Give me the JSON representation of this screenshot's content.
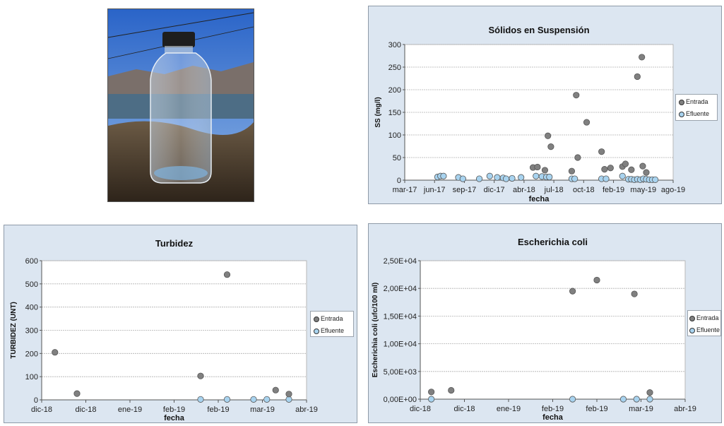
{
  "colors": {
    "entrada": "#808080",
    "efluente": "#a8d3ef",
    "plot_bg": "#ffffff",
    "panel_bg": "#dce6f1"
  },
  "photo": {
    "icon": "water-sample-bottle-photo"
  },
  "chart_data": [
    {
      "id": "ss",
      "type": "scatter",
      "title": "Sólidos en Suspensión",
      "xlabel": "fecha",
      "ylabel": "SS (mg/l)",
      "ylim": [
        0,
        300
      ],
      "yticks": [
        "0",
        "50",
        "100",
        "150",
        "200",
        "250",
        "300"
      ],
      "yticks_values": [
        0,
        50,
        100,
        150,
        200,
        250,
        300
      ],
      "xticks": [
        "mar-17",
        "jun-17",
        "sep-17",
        "dic-17",
        "abr-18",
        "jul-18",
        "oct-18",
        "feb-19",
        "may-19",
        "ago-19"
      ],
      "grid": true,
      "legend_position": "right",
      "series": [
        {
          "name": "Entrada",
          "points": [
            [
              4.3,
              28
            ],
            [
              4.45,
              29
            ],
            [
              4.7,
              22
            ],
            [
              4.8,
              98
            ],
            [
              4.9,
              74
            ],
            [
              5.6,
              20
            ],
            [
              5.75,
              188
            ],
            [
              5.8,
              50
            ],
            [
              6.1,
              128
            ],
            [
              6.6,
              63
            ],
            [
              6.7,
              24
            ],
            [
              6.9,
              27
            ],
            [
              7.3,
              30
            ],
            [
              7.4,
              36
            ],
            [
              7.6,
              23
            ],
            [
              7.8,
              229
            ],
            [
              7.95,
              272
            ],
            [
              7.98,
              31
            ],
            [
              8.1,
              17
            ]
          ]
        },
        {
          "name": "Efluente",
          "points": [
            [
              1.1,
              7
            ],
            [
              1.2,
              9
            ],
            [
              1.3,
              9
            ],
            [
              1.8,
              6
            ],
            [
              1.95,
              3
            ],
            [
              2.5,
              3
            ],
            [
              2.85,
              9
            ],
            [
              3.1,
              6
            ],
            [
              3.3,
              5
            ],
            [
              3.4,
              3
            ],
            [
              3.6,
              4
            ],
            [
              3.9,
              6
            ],
            [
              4.4,
              9
            ],
            [
              4.6,
              8
            ],
            [
              4.75,
              7
            ],
            [
              4.85,
              7
            ],
            [
              5.6,
              3
            ],
            [
              5.7,
              3
            ],
            [
              6.6,
              3
            ],
            [
              6.75,
              3
            ],
            [
              7.3,
              9
            ],
            [
              7.5,
              2
            ],
            [
              7.6,
              2
            ],
            [
              7.7,
              1
            ],
            [
              7.8,
              2
            ],
            [
              7.9,
              1
            ],
            [
              8.0,
              3
            ],
            [
              8.1,
              2
            ],
            [
              8.2,
              1
            ],
            [
              8.3,
              1
            ],
            [
              8.4,
              1
            ]
          ]
        }
      ]
    },
    {
      "id": "turb",
      "type": "scatter",
      "title": "Turbidez",
      "xlabel": "fecha",
      "ylabel": "TURBIDEZ (UNT)",
      "ylim": [
        0,
        600
      ],
      "yticks": [
        "0",
        "100",
        "200",
        "300",
        "400",
        "500",
        "600"
      ],
      "yticks_values": [
        0,
        100,
        200,
        300,
        400,
        500,
        600
      ],
      "xticks": [
        "dic-18",
        "dic-18",
        "ene-19",
        "feb-19",
        "feb-19",
        "mar-19",
        "abr-19"
      ],
      "grid": true,
      "legend_position": "right",
      "series": [
        {
          "name": "Entrada",
          "points": [
            [
              0.3,
              205
            ],
            [
              0.8,
              27
            ],
            [
              3.6,
              103
            ],
            [
              4.2,
              540
            ],
            [
              5.3,
              42
            ],
            [
              5.6,
              25
            ]
          ]
        },
        {
          "name": "Efluente",
          "points": [
            [
              3.6,
              2
            ],
            [
              4.2,
              2
            ],
            [
              4.8,
              2
            ],
            [
              5.1,
              2
            ],
            [
              5.6,
              2
            ]
          ]
        }
      ]
    },
    {
      "id": "ecoli",
      "type": "scatter",
      "title": "Escherichia coli",
      "xlabel": "fecha",
      "ylabel": "Escherichia coli (ufc/100 ml)",
      "ylim": [
        0,
        25000
      ],
      "yticks": [
        "0,00E+00",
        "5,00E+03",
        "1,00E+04",
        "1,50E+04",
        "2,00E+04",
        "2,50E+04"
      ],
      "yticks_values": [
        0,
        5000,
        10000,
        15000,
        20000,
        25000
      ],
      "xticks": [
        "dic-18",
        "dic-18",
        "ene-19",
        "feb-19",
        "feb-19",
        "mar-19",
        "abr-19"
      ],
      "grid": true,
      "legend_position": "right",
      "series": [
        {
          "name": "Entrada",
          "points": [
            [
              0.25,
              1300
            ],
            [
              0.7,
              1600
            ],
            [
              3.45,
              19500
            ],
            [
              4.0,
              21500
            ],
            [
              4.85,
              19000
            ],
            [
              5.2,
              1200
            ]
          ]
        },
        {
          "name": "Efluente",
          "points": [
            [
              0.25,
              0
            ],
            [
              3.45,
              0
            ],
            [
              4.6,
              0
            ],
            [
              4.9,
              0
            ],
            [
              5.2,
              0
            ]
          ]
        }
      ]
    }
  ]
}
